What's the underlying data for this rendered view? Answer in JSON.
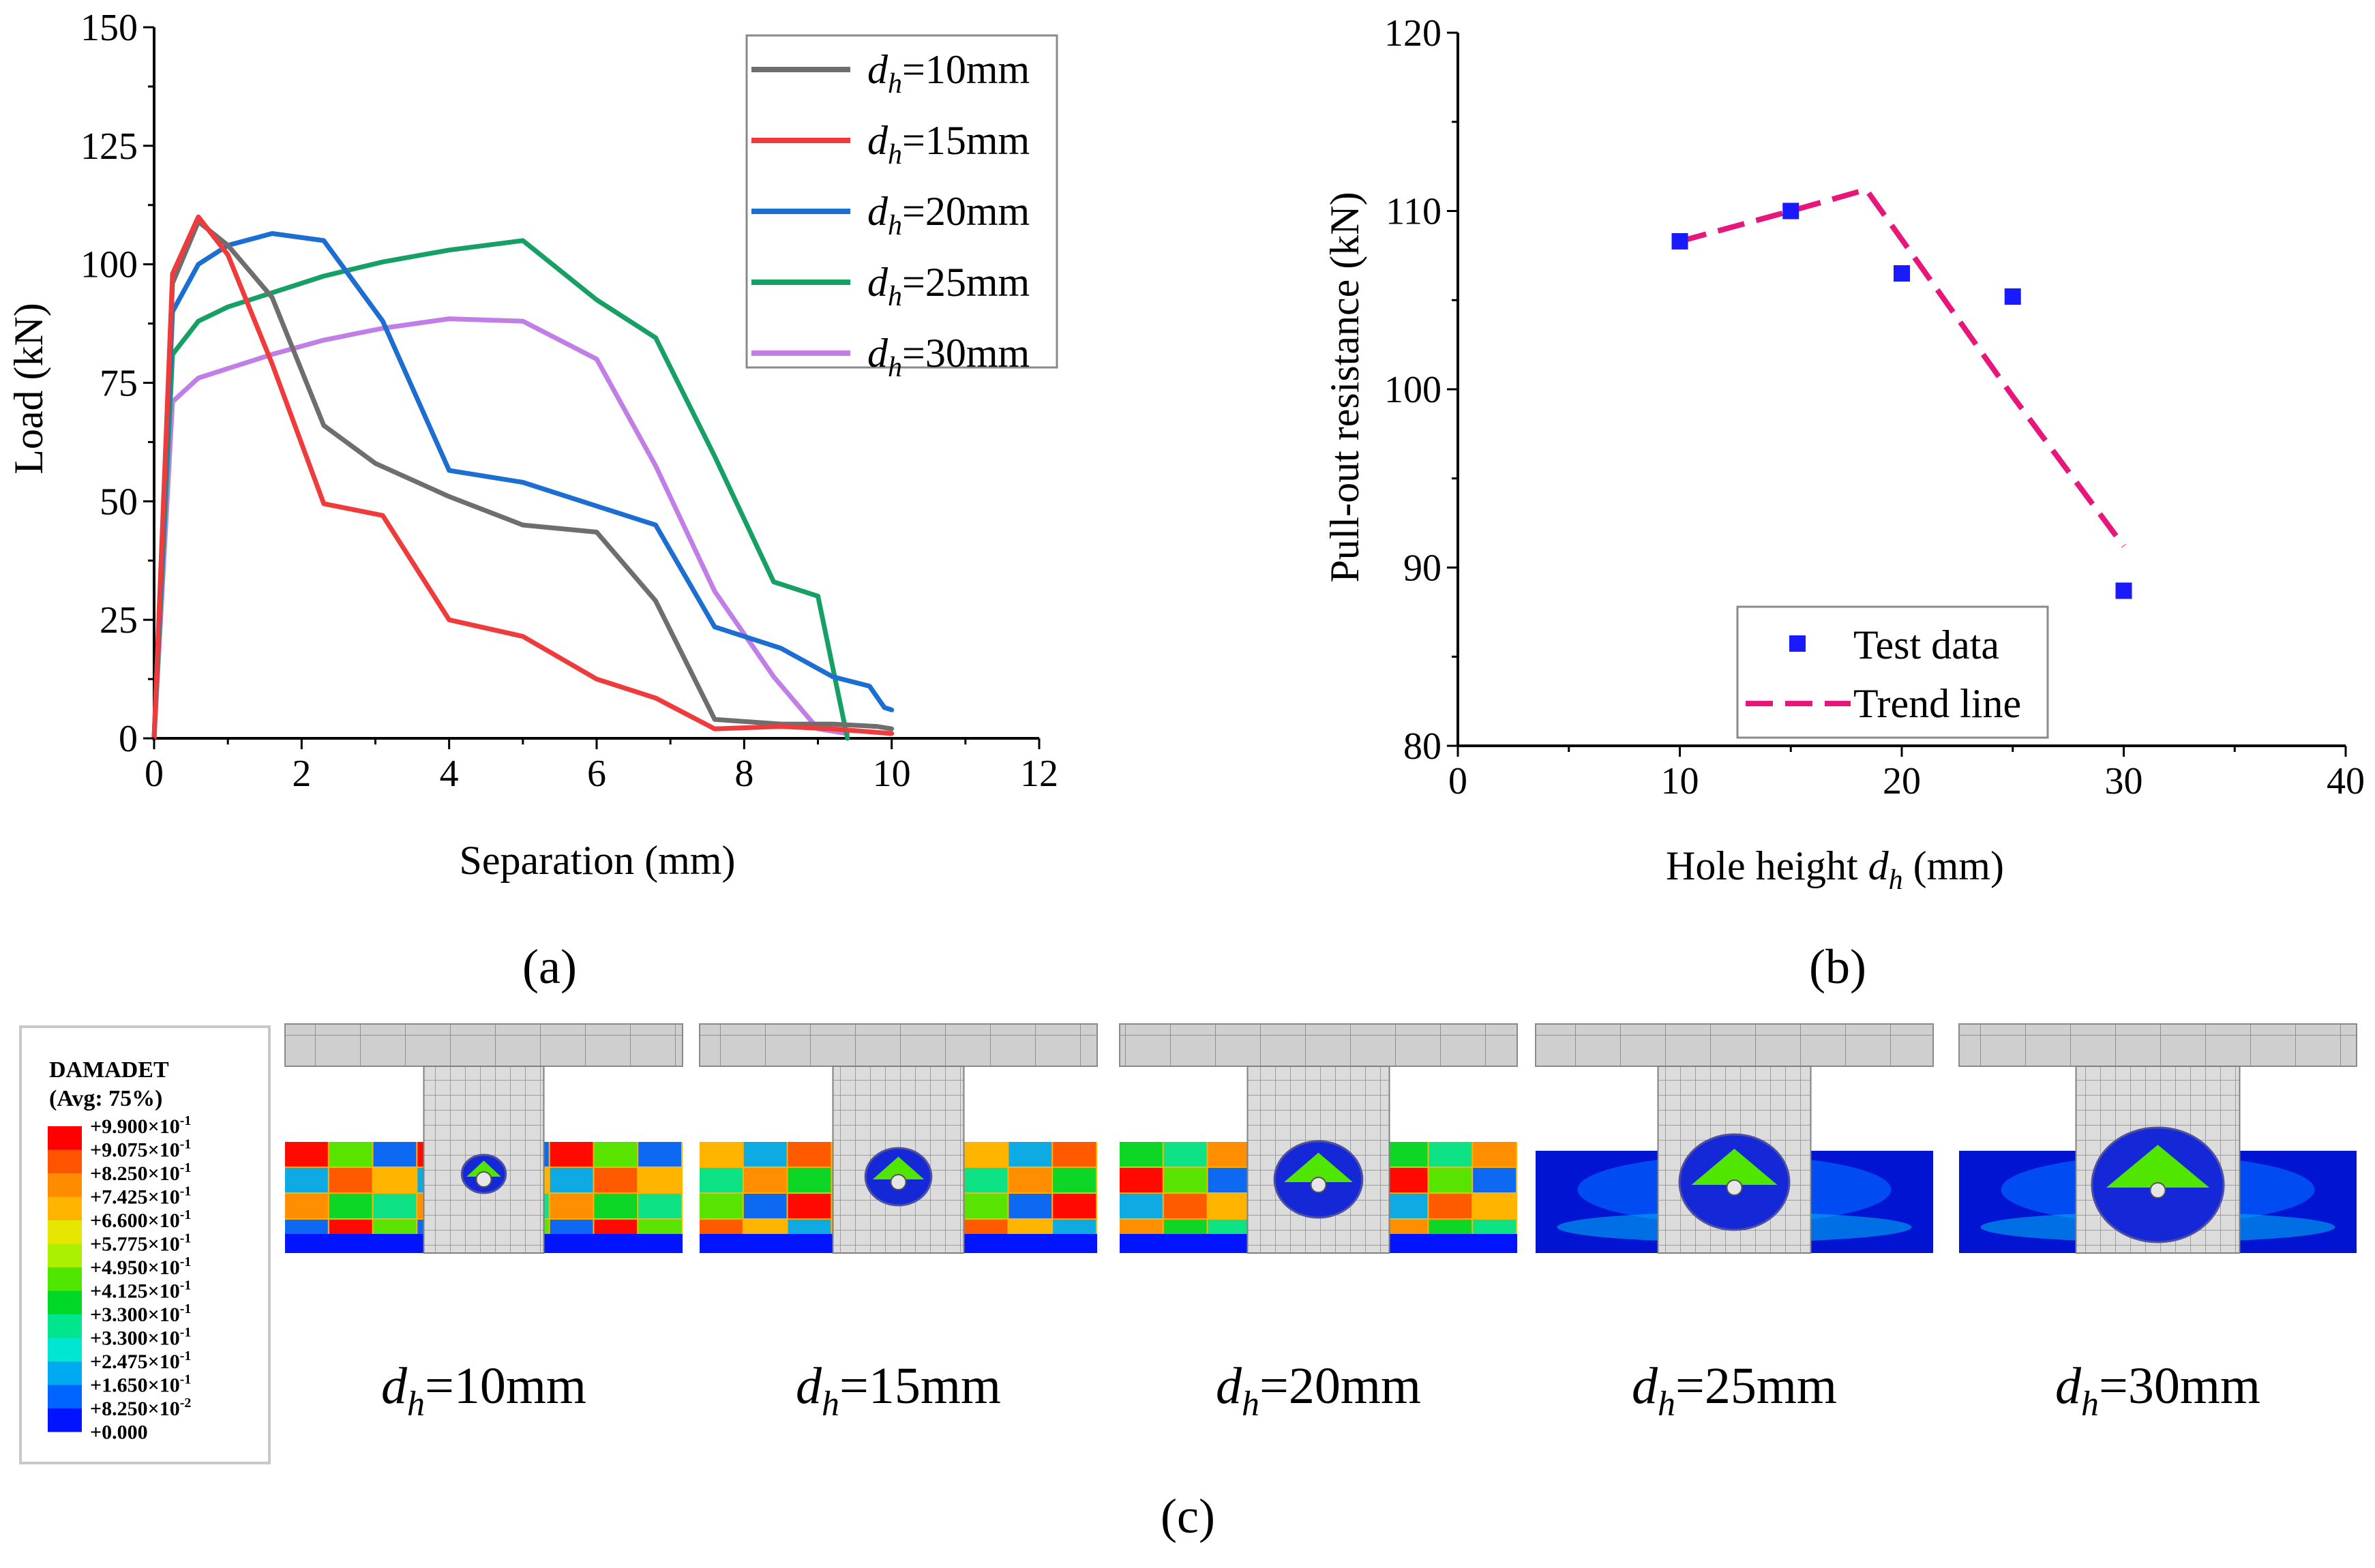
{
  "panels": {
    "a_label": "(a)",
    "b_label": "(b)",
    "c_label": "(c)"
  },
  "chart_data": [
    {
      "type": "line",
      "xlabel": "Separation (mm)",
      "ylabel": "Load (kN)",
      "xlim": [
        0,
        12
      ],
      "ylim": [
        0,
        150
      ],
      "xticks": [
        "0",
        "2",
        "4",
        "6",
        "8",
        "10",
        "12"
      ],
      "yticks": [
        "0",
        "25",
        "50",
        "75",
        "100",
        "125",
        "150"
      ],
      "grid": false,
      "legend_position": "top-right",
      "series": [
        {
          "name": "dh=10mm",
          "sym": "d",
          "sub": "h",
          "rest": "=10mm",
          "color": "#6e6e6e",
          "x": [
            0,
            0.25,
            0.6,
            1.0,
            1.6,
            2.3,
            3.0,
            4.0,
            5.0,
            6.0,
            6.8,
            7.6,
            8.5,
            9.2,
            9.8,
            10.0
          ],
          "y": [
            0,
            96,
            109,
            104,
            93,
            66,
            58,
            51,
            45,
            43.5,
            29,
            4,
            3,
            3,
            2.5,
            2
          ]
        },
        {
          "name": "dh=15mm",
          "sym": "d",
          "sub": "h",
          "rest": "=15mm",
          "color": "#ef3b3b",
          "x": [
            0,
            0.25,
            0.6,
            1.0,
            1.6,
            2.3,
            3.1,
            4.0,
            5.0,
            6.0,
            6.8,
            7.6,
            8.5,
            9.2,
            10.0
          ],
          "y": [
            0,
            98,
            110,
            102,
            79,
            49.5,
            47,
            25,
            21.5,
            12.5,
            8.5,
            2,
            2.5,
            2,
            1
          ]
        },
        {
          "name": "dh=20mm",
          "sym": "d",
          "sub": "h",
          "rest": "=20mm",
          "color": "#1c6fd0",
          "x": [
            0,
            0.25,
            0.6,
            1.0,
            1.6,
            2.3,
            3.1,
            4.0,
            5.0,
            6.0,
            6.8,
            7.6,
            8.5,
            9.2,
            9.7,
            9.9,
            10.0
          ],
          "y": [
            0,
            90,
            100,
            104,
            106.5,
            105,
            88,
            56.5,
            54,
            49,
            45,
            23.5,
            19,
            13,
            11,
            6.5,
            6
          ]
        },
        {
          "name": "dh=25mm",
          "sym": "d",
          "sub": "h",
          "rest": "=25mm",
          "color": "#17a064",
          "x": [
            0,
            0.25,
            0.6,
            1.0,
            1.6,
            2.3,
            3.1,
            4.0,
            5.0,
            6.0,
            6.8,
            7.6,
            8.4,
            9.0,
            9.4
          ],
          "y": [
            0,
            81,
            88,
            91,
            94,
            97.5,
            100.5,
            103,
            105,
            92.5,
            84.5,
            59.5,
            33,
            30,
            0
          ]
        },
        {
          "name": "dh=30mm",
          "sym": "d",
          "sub": "h",
          "rest": "=30mm",
          "color": "#c07ee6",
          "x": [
            0,
            0.25,
            0.6,
            1.0,
            1.6,
            2.3,
            3.1,
            4.0,
            5.0,
            6.0,
            6.8,
            7.6,
            8.4,
            9.0,
            9.4
          ],
          "y": [
            0,
            71,
            76,
            78,
            81,
            84,
            86.5,
            88.5,
            88,
            80,
            57.5,
            31,
            13,
            2,
            1
          ]
        }
      ]
    },
    {
      "type": "scatter",
      "xlabel_pre": "Hole height ",
      "xlabel_sym": "d",
      "xlabel_sub": "h",
      "xlabel_post": " (mm)",
      "ylabel": "Pull-out resistance (kN)",
      "xlim": [
        0,
        40
      ],
      "ylim": [
        80,
        120
      ],
      "xticks": [
        "0",
        "10",
        "20",
        "30",
        "40"
      ],
      "yticks": [
        "80",
        "90",
        "100",
        "110",
        "120"
      ],
      "grid": false,
      "legend_position": "bottom-right",
      "series": [
        {
          "name": "Test data",
          "kind": "scatter",
          "color": "#1a1aff",
          "x": [
            10,
            15,
            20,
            25,
            30
          ],
          "y": [
            108.3,
            110.0,
            106.5,
            105.2,
            88.7
          ]
        },
        {
          "name": "Trend line",
          "kind": "dashed-line",
          "color": "#e8157a",
          "x": [
            10,
            15,
            18.4,
            20,
            25,
            30
          ],
          "y": [
            108.3,
            110.0,
            111.2,
            108.4,
            99.6,
            91.2
          ]
        }
      ]
    }
  ],
  "contour": {
    "title": "DAMADET",
    "subtitle": "(Avg: 75%)",
    "levels": [
      {
        "mant": "+9.900",
        "exp": "-1",
        "color": "#ff0000"
      },
      {
        "mant": "+9.075",
        "exp": "-1",
        "color": "#ff5500"
      },
      {
        "mant": "+8.250",
        "exp": "-1",
        "color": "#ff8c00"
      },
      {
        "mant": "+7.425",
        "exp": "-1",
        "color": "#ffb400"
      },
      {
        "mant": "+6.600",
        "exp": "-1",
        "color": "#e6e600"
      },
      {
        "mant": "+5.775",
        "exp": "-1",
        "color": "#aaf000"
      },
      {
        "mant": "+4.950",
        "exp": "-1",
        "color": "#50e600"
      },
      {
        "mant": "+4.125",
        "exp": "-1",
        "color": "#00d828"
      },
      {
        "mant": "+3.300",
        "exp": "-1",
        "color": "#00e68c"
      },
      {
        "mant": "+3.300",
        "exp": "-1",
        "color": "#00e6d2"
      },
      {
        "mant": "+2.475",
        "exp": "-1",
        "color": "#00aaf0"
      },
      {
        "mant": "+1.650",
        "exp": "-1",
        "color": "#0064ff"
      },
      {
        "mant": "+8.250",
        "exp": "-2",
        "color": "#0014ff"
      },
      {
        "mant": "+0.000",
        "exp": "",
        "color": "#0000d2"
      }
    ]
  },
  "models": [
    {
      "sym": "d",
      "sub": "h",
      "rest": "=10mm"
    },
    {
      "sym": "d",
      "sub": "h",
      "rest": "=15mm"
    },
    {
      "sym": "d",
      "sub": "h",
      "rest": "=20mm"
    },
    {
      "sym": "d",
      "sub": "h",
      "rest": "=25mm"
    },
    {
      "sym": "d",
      "sub": "h",
      "rest": "=30mm"
    }
  ]
}
